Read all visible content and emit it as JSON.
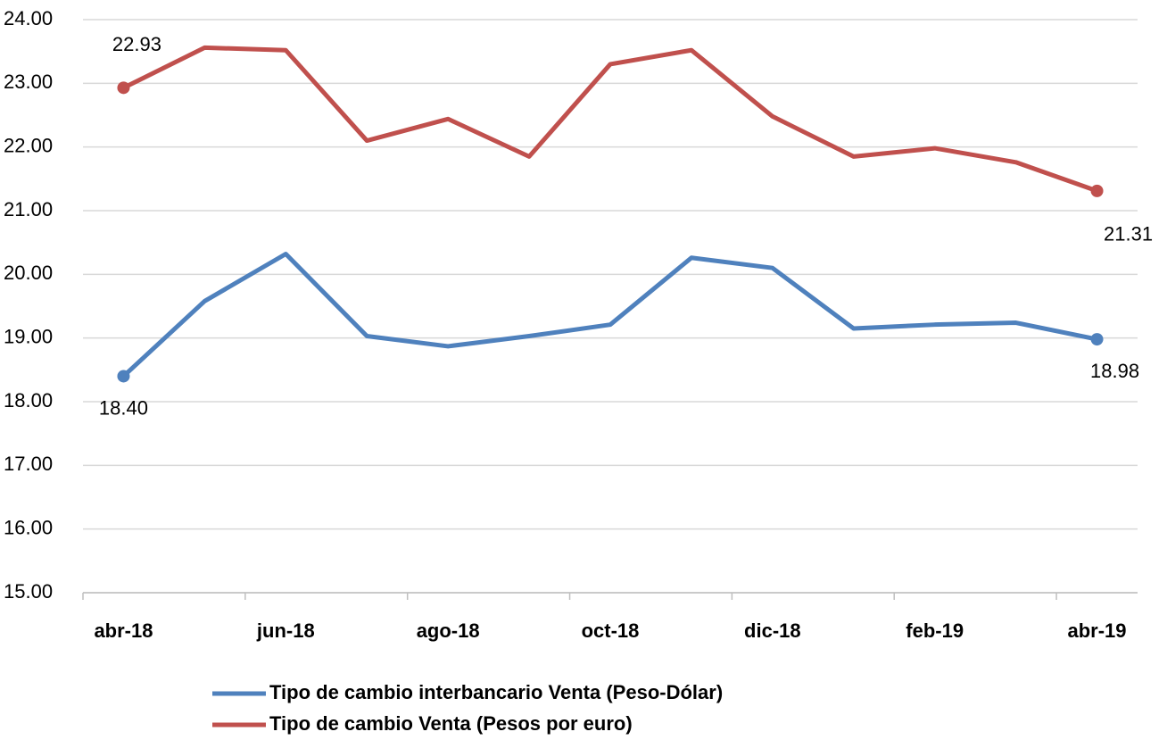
{
  "chart_data": {
    "type": "line",
    "categories": [
      "abr-18",
      null,
      "jun-18",
      null,
      "ago-18",
      null,
      "oct-18",
      null,
      "dic-18",
      null,
      "feb-19",
      null,
      "abr-19"
    ],
    "series": [
      {
        "name": "Tipo de cambio interbancario Venta (Peso-Dólar)",
        "color": "#4f81bd",
        "values": [
          18.4,
          19.58,
          20.32,
          19.03,
          18.87,
          19.03,
          19.21,
          20.26,
          20.1,
          19.15,
          19.21,
          19.24,
          18.98
        ],
        "value_labels": [
          "18.40",
          null,
          null,
          null,
          null,
          null,
          null,
          null,
          null,
          null,
          null,
          null,
          "18.98"
        ]
      },
      {
        "name": "Tipo de cambio Venta (Pesos por euro)",
        "color": "#c0504d",
        "values": [
          22.93,
          23.56,
          23.52,
          22.1,
          22.44,
          21.85,
          23.3,
          23.52,
          22.48,
          21.85,
          21.98,
          21.76,
          21.31
        ],
        "value_labels": [
          "22.93",
          null,
          null,
          null,
          null,
          null,
          null,
          null,
          null,
          null,
          null,
          null,
          "21.31"
        ]
      }
    ],
    "ylim": [
      15,
      24
    ],
    "yticks": [
      {
        "value": 15,
        "label": "15.00"
      },
      {
        "value": 16,
        "label": "16.00"
      },
      {
        "value": 17,
        "label": "17.00"
      },
      {
        "value": 18,
        "label": "18.00"
      },
      {
        "value": 19,
        "label": "19.00"
      },
      {
        "value": 20,
        "label": "20.00"
      },
      {
        "value": 21,
        "label": "21.00"
      },
      {
        "value": 22,
        "label": "22.00"
      },
      {
        "value": 23,
        "label": "23.00"
      },
      {
        "value": 24,
        "label": "24.00"
      }
    ],
    "grid": true,
    "legend": "bottom"
  }
}
